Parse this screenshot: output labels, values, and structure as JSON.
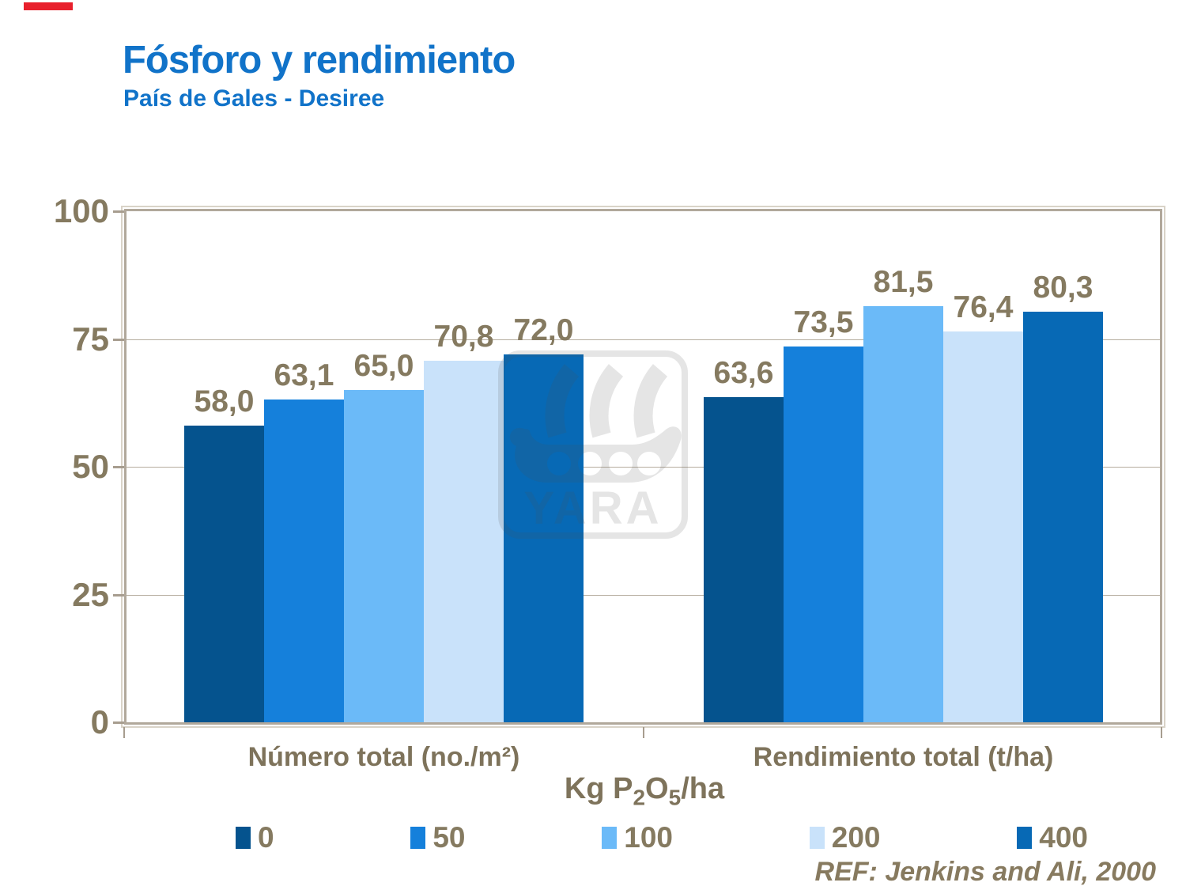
{
  "slide": {
    "title": "Fósforo y rendimiento",
    "subtitle": "País de Gales - Desiree",
    "reference": "REF: Jenkins and Ali, 2000",
    "watermark_text": "YARA"
  },
  "colors": {
    "accent_red": "#e8202c",
    "title_blue": "#1173c9",
    "text_brown": "#857a60",
    "axis_tan": "#b1a89b",
    "gridline_tan": "#b6ad9f"
  },
  "chart_data": {
    "type": "bar",
    "title": "Fósforo y rendimiento",
    "subtitle": "País de Gales - Desiree",
    "categories": [
      "Número total (no./m²)",
      "Rendimiento total (t/ha)"
    ],
    "series": [
      {
        "name": "0",
        "color": "#05538E",
        "values": [
          58.0,
          63.6
        ],
        "labels": [
          "58,0",
          "63,6"
        ]
      },
      {
        "name": "50",
        "color": "#1580DB",
        "values": [
          63.1,
          73.5
        ],
        "labels": [
          "63,1",
          "73,5"
        ]
      },
      {
        "name": "100",
        "color": "#6BBAF8",
        "values": [
          65.0,
          81.5
        ],
        "labels": [
          "65,0",
          "81,5"
        ]
      },
      {
        "name": "200",
        "color": "#C9E2FA",
        "values": [
          70.8,
          76.4
        ],
        "labels": [
          "70,8",
          "76,4"
        ]
      },
      {
        "name": "400",
        "color": "#0769B5",
        "values": [
          72.0,
          80.3
        ],
        "labels": [
          "72,0",
          "80,3"
        ]
      }
    ],
    "ylim": [
      0,
      100
    ],
    "yticks": [
      0,
      25,
      50,
      75,
      100
    ],
    "ytick_labels": [
      "0",
      "25",
      "50",
      "75",
      "100"
    ],
    "grid": true,
    "legend_position": "bottom",
    "legend_labels": [
      "0",
      "50",
      "100",
      "200",
      "400"
    ],
    "xlabel_parts": {
      "p1": "Kg P",
      "s1": "2",
      "p2": "O",
      "s2": "5",
      "p3": "/ha"
    }
  }
}
